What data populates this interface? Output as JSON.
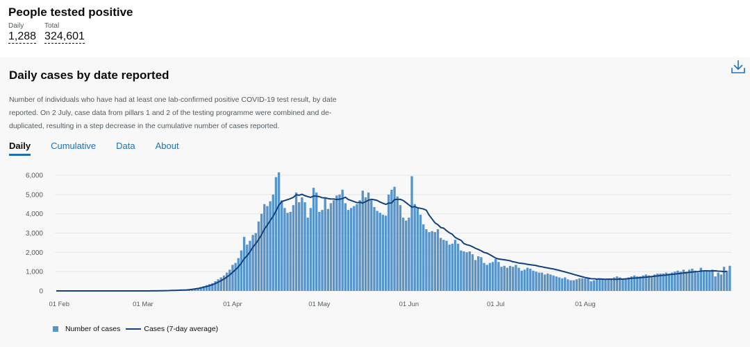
{
  "headline": {
    "title": "People tested positive",
    "daily_label": "Daily",
    "daily_value": "1,288",
    "total_label": "Total",
    "total_value": "324,601"
  },
  "card": {
    "title": "Daily cases by date reported",
    "description": "Number of individuals who have had at least one lab-confirmed positive COVID-19 test result, by date reported. On 2 July, case data from pillars 1 and 2 of the testing programme were combined and de-duplicated, resulting in a step decrease in the cumulative number of cases reported.",
    "tabs": [
      "Daily",
      "Cumulative",
      "Data",
      "About"
    ],
    "active_tab": "Daily"
  },
  "colors": {
    "bar": "#5694ca",
    "line": "#12407f",
    "grid": "#e6e6e6",
    "tab_active": "#1d70b8"
  },
  "chart_data": {
    "type": "bar",
    "title": "Daily cases by date reported",
    "x_tick_labels": [
      "01 Feb",
      "01 Mar",
      "01 Apr",
      "01 May",
      "01 Jun",
      "01 Jul",
      "01 Aug"
    ],
    "y_tick_labels": [
      "0",
      "1,000",
      "2,000",
      "3,000",
      "4,000",
      "5,000",
      "6,000"
    ],
    "ylim": [
      0,
      6500
    ],
    "start_date": "2020-01-31",
    "series": [
      {
        "name": "Number of cases",
        "kind": "bar",
        "values": [
          0,
          0,
          0,
          0,
          0,
          0,
          0,
          0,
          0,
          0,
          0,
          0,
          0,
          0,
          0,
          0,
          0,
          0,
          0,
          0,
          0,
          0,
          0,
          0,
          0,
          0,
          0,
          0,
          0,
          0,
          1,
          2,
          2,
          3,
          5,
          8,
          10,
          15,
          20,
          25,
          30,
          35,
          40,
          45,
          50,
          60,
          80,
          100,
          130,
          160,
          200,
          250,
          300,
          350,
          400,
          500,
          600,
          700,
          800,
          950,
          1100,
          1350,
          1450,
          1700,
          2100,
          2800,
          2400,
          2600,
          2900,
          3000,
          3600,
          4000,
          4500,
          4400,
          4650,
          5000,
          5900,
          6150,
          4700,
          4300,
          4050,
          4100,
          4450,
          5100,
          4600,
          4850,
          4600,
          3800,
          4300,
          5350,
          5100,
          4100,
          4200,
          4800,
          4250,
          4550,
          4700,
          4950,
          5000,
          5250,
          4550,
          4200,
          4300,
          4400,
          4500,
          4700,
          5200,
          4850,
          5100,
          4700,
          4350,
          4150,
          4050,
          3950,
          3900,
          5000,
          5250,
          5400,
          4900,
          4450,
          3800,
          3650,
          3800,
          5950,
          4500,
          4300,
          3950,
          3450,
          3200,
          3050,
          3100,
          3050,
          3200,
          2750,
          2650,
          2600,
          2400,
          2450,
          2650,
          2450,
          2100,
          2050,
          2000,
          2050,
          1900,
          1600,
          1800,
          1750,
          1450,
          1350,
          1450,
          1500,
          1650,
          1500,
          1250,
          1300,
          1200,
          1300,
          1250,
          1350,
          1200,
          1050,
          1100,
          1200,
          1150,
          1050,
          1000,
          950,
          950,
          850,
          900,
          850,
          800,
          750,
          700,
          650,
          700,
          600,
          550,
          550,
          600,
          650,
          650,
          650,
          700,
          500,
          550,
          600,
          650,
          650,
          600,
          600,
          650,
          700,
          750,
          700,
          650,
          650,
          700,
          750,
          800,
          750,
          750,
          800,
          850,
          800,
          750,
          850,
          900,
          900,
          900,
          950,
          900,
          950,
          1000,
          1050,
          1000,
          1100,
          1000,
          1100,
          1150,
          1050,
          950,
          1200,
          1050,
          1050,
          1000,
          1100,
          750,
          950,
          850,
          1250,
          1050,
          1300
        ]
      },
      {
        "name": "Cases (7-day average)",
        "kind": "line",
        "values": [
          0,
          0,
          0,
          0,
          0,
          0,
          0,
          0,
          0,
          0,
          0,
          0,
          0,
          0,
          0,
          0,
          0,
          0,
          0,
          0,
          0,
          0,
          0,
          0,
          0,
          0,
          0,
          0,
          0,
          0,
          0,
          1,
          1,
          2,
          3,
          5,
          7,
          10,
          14,
          19,
          24,
          28,
          33,
          38,
          43,
          51,
          66,
          82,
          103,
          126,
          156,
          191,
          227,
          270,
          318,
          378,
          452,
          530,
          614,
          718,
          827,
          965,
          1098,
          1252,
          1440,
          1672,
          1818,
          2032,
          2264,
          2457,
          2662,
          2914,
          3203,
          3414,
          3645,
          3869,
          4150,
          4450,
          4629,
          4686,
          4736,
          4786,
          4855,
          4986,
          4961,
          5012,
          4940,
          4893,
          4850,
          4921,
          4911,
          4890,
          4831,
          4828,
          4789,
          4769,
          4765,
          4744,
          4758,
          4789,
          4856,
          4743,
          4691,
          4633,
          4579,
          4597,
          4561,
          4629,
          4702,
          4748,
          4727,
          4693,
          4608,
          4547,
          4486,
          4554,
          4564,
          4738,
          4746,
          4755,
          4690,
          4576,
          4457,
          4343,
          4375,
          4313,
          4281,
          4250,
          4186,
          3927,
          3729,
          3527,
          3436,
          3286,
          3254,
          3121,
          3016,
          2936,
          2774,
          2692,
          2626,
          2454,
          2398,
          2357,
          2288,
          2210,
          2147,
          2079,
          1993,
          1957,
          1877,
          1794,
          1701,
          1658,
          1633,
          1612,
          1591,
          1564,
          1514,
          1485,
          1445,
          1429,
          1408,
          1378,
          1359,
          1337,
          1314,
          1276,
          1252,
          1217,
          1191,
          1163,
          1134,
          1101,
          1063,
          1025,
          984,
          943,
          900,
          856,
          817,
          772,
          732,
          694,
          663,
          633,
          629,
          614,
          618,
          609,
          604,
          611,
          606,
          603,
          601,
          609,
          609,
          624,
          638,
          655,
          665,
          674,
          683,
          699,
          714,
          731,
          748,
          764,
          776,
          793,
          807,
          824,
          843,
          859,
          874,
          893,
          910,
          930,
          946,
          964,
          981,
          995,
          1000,
          1026,
          1039,
          1043,
          1040,
          1037,
          1042,
          1024,
          1022,
          1000,
          1016
        ]
      }
    ]
  }
}
